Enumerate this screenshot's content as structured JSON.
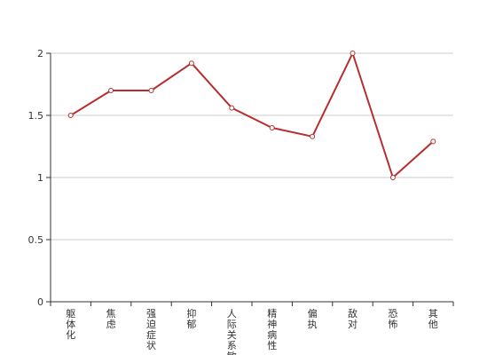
{
  "chart_data": {
    "type": "line",
    "title": "",
    "xlabel": "",
    "ylabel": "",
    "categories": [
      "躯体化",
      "焦虑",
      "强迫症状",
      "抑郁",
      "人际关系敏感",
      "精神病性",
      "偏执",
      "敌对",
      "恐怖",
      "其他"
    ],
    "series": [
      {
        "values": [
          1.5,
          1.7,
          1.7,
          1.92,
          1.56,
          1.4,
          1.33,
          2.0,
          1.0,
          1.29
        ]
      }
    ],
    "ylim": [
      0,
      2
    ],
    "yticks": [
      "0",
      "0.5",
      "1",
      "1.5",
      "2"
    ],
    "grid": true,
    "colors": {
      "line": "#b82e2e",
      "grid": "#cccccc",
      "axis": "#333333",
      "marker_fill": "#ffffff"
    }
  }
}
